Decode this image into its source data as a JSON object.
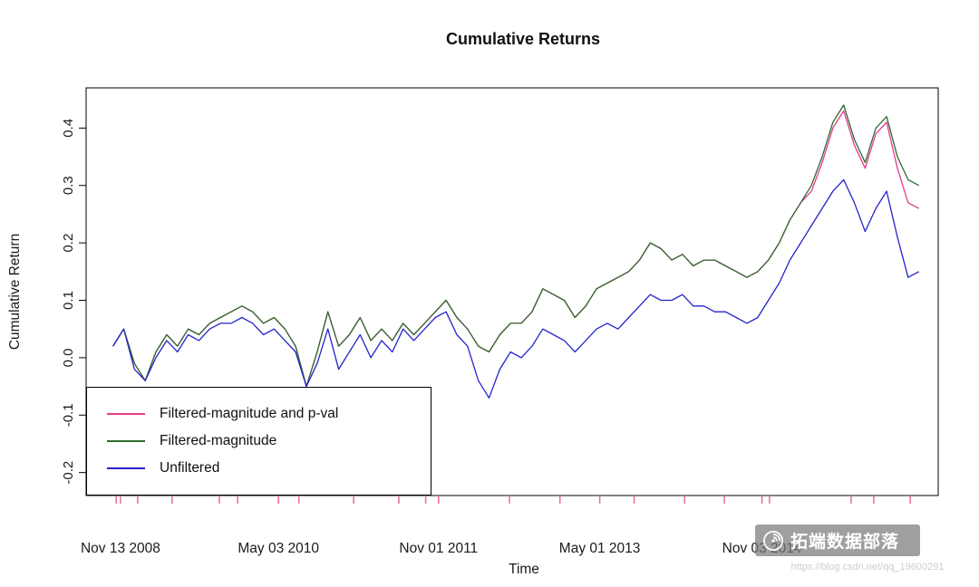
{
  "chart_data": {
    "type": "line",
    "title": "Cumulative Returns",
    "xlabel": "Time",
    "ylabel": "Cumulative Return",
    "grid": false,
    "legend_position": "bottom-left",
    "xlim": [
      2008.55,
      2016.48
    ],
    "ylim": [
      -0.24,
      0.47
    ],
    "yticks": [
      -0.2,
      -0.1,
      0.0,
      0.1,
      0.2,
      0.3,
      0.4
    ],
    "ytick_labels": [
      "-0.2",
      "-0.1",
      "0.0",
      "0.1",
      "0.2",
      "0.3",
      "0.4"
    ],
    "xticks": [
      {
        "x": 2008.87,
        "label": "Nov 13 2008"
      },
      {
        "x": 2010.34,
        "label": "May 03 2010"
      },
      {
        "x": 2011.83,
        "label": "Nov 01 2011"
      },
      {
        "x": 2013.33,
        "label": "May 01 2013"
      },
      {
        "x": 2014.84,
        "label": "Nov 03 2014"
      }
    ],
    "minor_ticks_x": [
      2008.83,
      2009.03,
      2009.35,
      2009.79,
      2009.96,
      2010.53,
      2011.04,
      2011.46,
      2011.71,
      2012.49,
      2012.96,
      2013.65,
      2014.12,
      2014.49,
      2014.91,
      2015.67,
      2015.88,
      2016.22
    ],
    "minor_tick_color": "#e76a9e",
    "x_unit": "decimal year",
    "x": [
      2008.8,
      2008.9,
      2009.0,
      2009.1,
      2009.2,
      2009.3,
      2009.4,
      2009.5,
      2009.6,
      2009.7,
      2009.8,
      2009.9,
      2010.0,
      2010.1,
      2010.2,
      2010.3,
      2010.4,
      2010.5,
      2010.6,
      2010.7,
      2010.8,
      2010.9,
      2011.0,
      2011.1,
      2011.2,
      2011.3,
      2011.4,
      2011.5,
      2011.6,
      2011.7,
      2011.8,
      2011.9,
      2012.0,
      2012.1,
      2012.2,
      2012.3,
      2012.4,
      2012.5,
      2012.6,
      2012.7,
      2012.8,
      2012.9,
      2013.0,
      2013.1,
      2013.2,
      2013.3,
      2013.4,
      2013.5,
      2013.6,
      2013.7,
      2013.8,
      2013.9,
      2014.0,
      2014.1,
      2014.2,
      2014.3,
      2014.4,
      2014.5,
      2014.6,
      2014.7,
      2014.8,
      2014.9,
      2015.0,
      2015.1,
      2015.2,
      2015.3,
      2015.4,
      2015.5,
      2015.6,
      2015.7,
      2015.8,
      2015.9,
      2016.0,
      2016.1,
      2016.2,
      2016.3
    ],
    "series": [
      {
        "name": "Filtered-magnitude and p-val",
        "color": "#e7398f",
        "values": [
          0.02,
          0.05,
          -0.01,
          -0.04,
          0.01,
          0.04,
          0.02,
          0.05,
          0.04,
          0.06,
          0.07,
          0.08,
          0.09,
          0.08,
          0.06,
          0.07,
          0.05,
          0.02,
          -0.05,
          0.01,
          0.08,
          0.02,
          0.04,
          0.07,
          0.03,
          0.05,
          0.03,
          0.06,
          0.04,
          0.06,
          0.08,
          0.1,
          0.07,
          0.05,
          0.02,
          0.01,
          0.04,
          0.06,
          0.06,
          0.08,
          0.12,
          0.11,
          0.1,
          0.07,
          0.09,
          0.12,
          0.13,
          0.14,
          0.15,
          0.17,
          0.2,
          0.19,
          0.17,
          0.18,
          0.16,
          0.17,
          0.17,
          0.16,
          0.15,
          0.14,
          0.15,
          0.17,
          0.2,
          0.24,
          0.27,
          0.29,
          0.34,
          0.4,
          0.43,
          0.37,
          0.33,
          0.39,
          0.41,
          0.33,
          0.27,
          0.26
        ]
      },
      {
        "name": "Filtered-magnitude",
        "color": "#2e6b2e",
        "values": [
          0.02,
          0.05,
          -0.01,
          -0.04,
          0.01,
          0.04,
          0.02,
          0.05,
          0.04,
          0.06,
          0.07,
          0.08,
          0.09,
          0.08,
          0.06,
          0.07,
          0.05,
          0.02,
          -0.05,
          0.01,
          0.08,
          0.02,
          0.04,
          0.07,
          0.03,
          0.05,
          0.03,
          0.06,
          0.04,
          0.06,
          0.08,
          0.1,
          0.07,
          0.05,
          0.02,
          0.01,
          0.04,
          0.06,
          0.06,
          0.08,
          0.12,
          0.11,
          0.1,
          0.07,
          0.09,
          0.12,
          0.13,
          0.14,
          0.15,
          0.17,
          0.2,
          0.19,
          0.17,
          0.18,
          0.16,
          0.17,
          0.17,
          0.16,
          0.15,
          0.14,
          0.15,
          0.17,
          0.2,
          0.24,
          0.27,
          0.3,
          0.35,
          0.41,
          0.44,
          0.38,
          0.34,
          0.4,
          0.42,
          0.35,
          0.31,
          0.3
        ]
      },
      {
        "name": "Unfiltered",
        "color": "#2424cc",
        "values": [
          0.02,
          0.05,
          -0.02,
          -0.04,
          0.0,
          0.03,
          0.01,
          0.04,
          0.03,
          0.05,
          0.06,
          0.06,
          0.07,
          0.06,
          0.04,
          0.05,
          0.03,
          0.01,
          -0.05,
          -0.01,
          0.05,
          -0.02,
          0.01,
          0.04,
          0.0,
          0.03,
          0.01,
          0.05,
          0.03,
          0.05,
          0.07,
          0.08,
          0.04,
          0.02,
          -0.04,
          -0.07,
          -0.02,
          0.01,
          0.0,
          0.02,
          0.05,
          0.04,
          0.03,
          0.01,
          0.03,
          0.05,
          0.06,
          0.05,
          0.07,
          0.09,
          0.11,
          0.1,
          0.1,
          0.11,
          0.09,
          0.09,
          0.08,
          0.08,
          0.07,
          0.06,
          0.07,
          0.1,
          0.13,
          0.17,
          0.2,
          0.23,
          0.26,
          0.29,
          0.31,
          0.27,
          0.22,
          0.26,
          0.29,
          0.21,
          0.14,
          0.15
        ]
      }
    ]
  },
  "watermark": {
    "text": "拓端数据部落",
    "url": "https://blog.csdn.net/qq_19600291"
  }
}
